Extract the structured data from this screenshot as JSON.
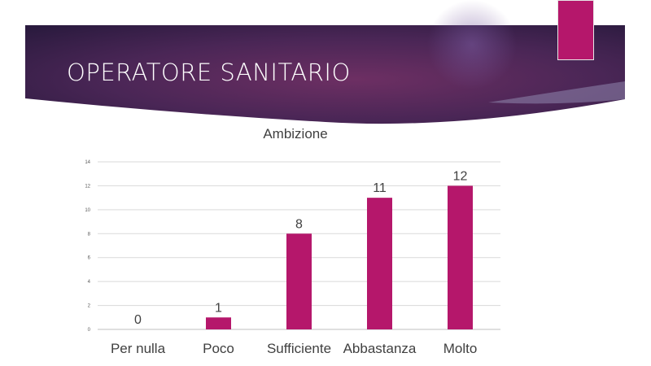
{
  "slide": {
    "title": "OPERATORE SANITARIO"
  },
  "theme": {
    "accent": "#b5176b",
    "banner_dark": "#2a1a3e",
    "banner_mid": "#6d2f63",
    "grid": "#d9d9d9",
    "text": "#404040"
  },
  "chart_data": {
    "type": "bar",
    "title": "Ambizione",
    "categories": [
      "Per nulla",
      "Poco",
      "Sufficiente",
      "Abbastanza",
      "Molto"
    ],
    "values": [
      0,
      1,
      8,
      11,
      12
    ],
    "ylim": [
      0,
      14
    ],
    "yticks": [
      0,
      2,
      4,
      6,
      8,
      10,
      12,
      14
    ],
    "grid": true,
    "data_labels": true,
    "color": "#b5176b"
  }
}
